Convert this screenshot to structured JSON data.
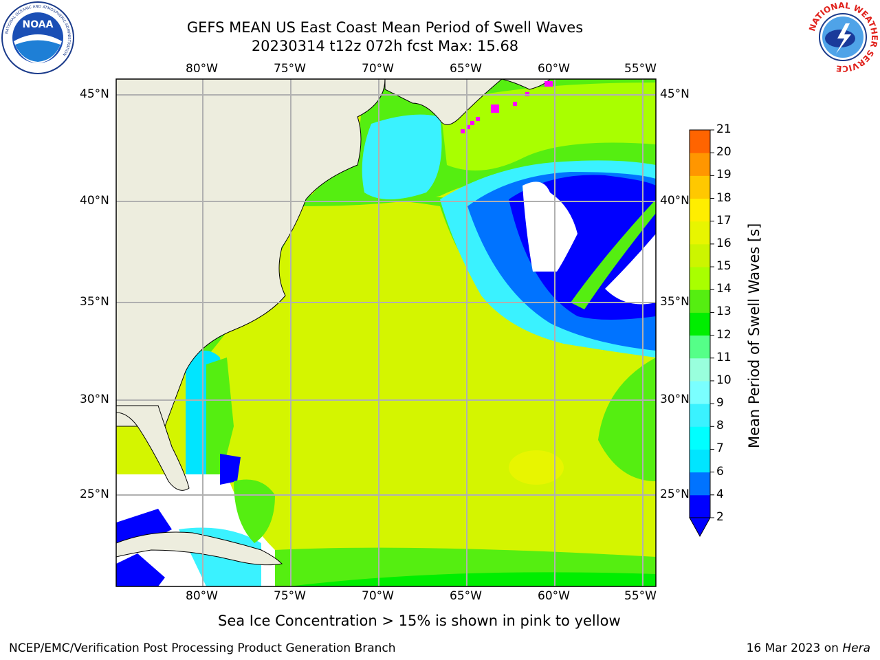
{
  "title": {
    "line1": "GEFS MEAN US East Coast Mean Period of Swell Waves",
    "line2": "20230314 t12z 072h fcst   Max: 15.68"
  },
  "map": {
    "lon_ticks": [
      "80°W",
      "75°W",
      "70°W",
      "65°W",
      "60°W",
      "55°W"
    ],
    "lat_ticks": [
      "45°N",
      "40°N",
      "35°N",
      "30°N",
      "25°N"
    ],
    "colors": {
      "land": "#ededde",
      "no_data": "#ffffff",
      "grid": "#b0b0b0",
      "coast": "#000000",
      "sea_ice": "#ff00ff"
    }
  },
  "colorbar": {
    "label": "Mean Period of Swell Waves [s]",
    "ticks": [
      "2",
      "4",
      "6",
      "7",
      "8",
      "9",
      "10",
      "11",
      "12",
      "13",
      "14",
      "15",
      "16",
      "17",
      "18",
      "19",
      "20",
      "21"
    ],
    "colors": [
      "#0000ff",
      "#0073ff",
      "#00e5ff",
      "#00ffff",
      "#3af2ff",
      "#7affff",
      "#99ffdd",
      "#55ff88",
      "#00ee00",
      "#55ee11",
      "#a9ff00",
      "#ccf500",
      "#e8f500",
      "#ffee00",
      "#ffc800",
      "#ff9600",
      "#ff6400",
      "#ff2800",
      "#ff0000"
    ]
  },
  "caption": "Sea Ice Concentration > 15% is shown in pink to yellow",
  "footer": {
    "left": "NCEP/EMC/Verification Post Processing Product Generation Branch",
    "right_date": "16 Mar 2023 on ",
    "right_host": "Hera"
  },
  "logos": {
    "noaa": "NOAA",
    "noaa_ring": "NATIONAL OCEANIC AND ATMOSPHERIC ADMINISTRATION",
    "nws_ring": "NATIONAL WEATHER SERVICE"
  }
}
